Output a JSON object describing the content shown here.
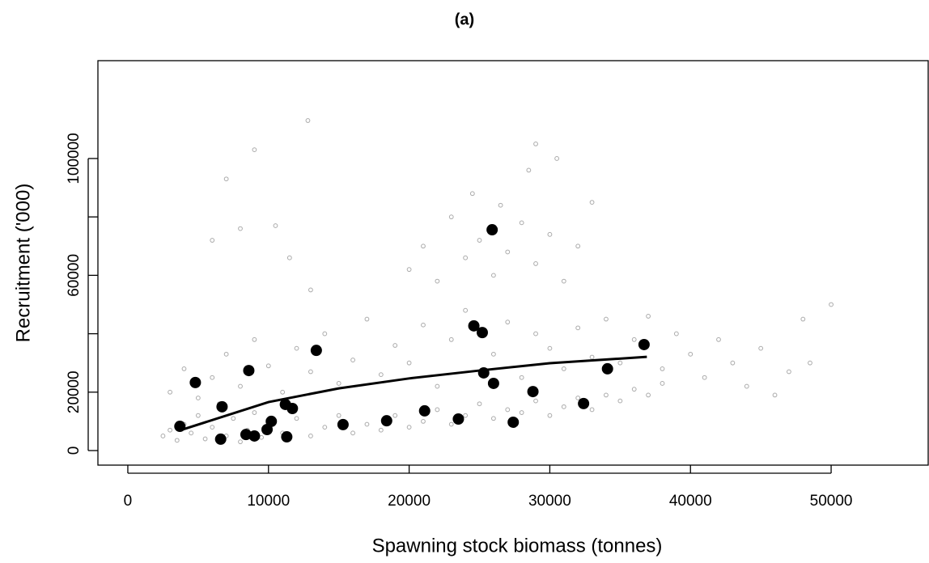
{
  "chart_data": {
    "type": "scatter",
    "title": "(a)",
    "x_label": "Spawning stock biomass (tonnes)",
    "y_label": "Recruitment ('000)",
    "xlim": [
      -2126,
      56900
    ],
    "ylim": [
      -4986,
      133500
    ],
    "xticks": [
      0,
      10000,
      20000,
      30000,
      40000,
      50000
    ],
    "yticks": [
      0,
      20000,
      40000,
      60000,
      80000,
      100000
    ],
    "ytick_labels_shown": [
      0,
      20000,
      60000,
      100000
    ],
    "series": [
      {
        "mode": "open-markers",
        "color": "#aaaaaa",
        "x": [
          2500,
          3000,
          3500,
          4000,
          4500,
          5000,
          5500,
          6000,
          6500,
          7000,
          7500,
          8000,
          8500,
          9000,
          9500,
          10000,
          11000,
          12000,
          13000,
          14000,
          15000,
          16000,
          17000,
          18000,
          19000,
          20000,
          21000,
          22000,
          23000,
          24000,
          25000,
          26000,
          27000,
          28000,
          29000,
          30000,
          31000,
          32000,
          33000,
          34000,
          35000,
          36000,
          37000,
          38000,
          3000,
          4000,
          5000,
          6000,
          7000,
          8000,
          9000,
          10000,
          11000,
          12000,
          13000,
          14000,
          15000,
          16000,
          17000,
          18000,
          19000,
          20000,
          21000,
          22000,
          23000,
          24000,
          26000,
          27000,
          28000,
          29000,
          30000,
          31000,
          32000,
          33000,
          34000,
          35000,
          36000,
          37000,
          38000,
          39000,
          40000,
          41000,
          42000,
          43000,
          44000,
          45000,
          46000,
          47000,
          48000,
          50000,
          48500,
          20000,
          21000,
          22000,
          23000,
          24000,
          24500,
          25000,
          26000,
          26500,
          27000,
          28000,
          28500,
          29000,
          30000,
          30500,
          31000,
          32000,
          33000,
          29000,
          7000,
          9000,
          12800,
          8000,
          10500,
          6000,
          11500,
          13000
        ],
        "values": [
          5000,
          7000,
          3500,
          9000,
          6000,
          12000,
          4000,
          8000,
          16000,
          5000,
          11000,
          3000,
          7000,
          13000,
          4500,
          9000,
          6000,
          11000,
          5000,
          8000,
          12000,
          6000,
          9000,
          7000,
          12000,
          8000,
          10000,
          14000,
          9000,
          12000,
          16000,
          11000,
          14000,
          13000,
          17000,
          12000,
          15000,
          18000,
          14000,
          19000,
          17000,
          21000,
          19000,
          23000,
          20000,
          28000,
          18000,
          25000,
          33000,
          22000,
          38000,
          29000,
          20000,
          35000,
          27000,
          40000,
          23000,
          31000,
          45000,
          26000,
          36000,
          30000,
          43000,
          22000,
          38000,
          48000,
          33000,
          44000,
          25000,
          40000,
          35000,
          28000,
          42000,
          32000,
          45000,
          30000,
          38000,
          46000,
          28000,
          40000,
          33000,
          25000,
          38000,
          30000,
          22000,
          35000,
          19000,
          27000,
          45000,
          50000,
          30000,
          62000,
          70000,
          58000,
          80000,
          66000,
          88000,
          72000,
          60000,
          84000,
          68000,
          78000,
          96000,
          64000,
          74000,
          100000,
          58000,
          70000,
          85000,
          105000,
          93000,
          103000,
          113000,
          76000,
          77000,
          72000,
          66000,
          55000
        ]
      },
      {
        "mode": "line",
        "color": "#000000",
        "x": [
          3700,
          10000,
          15000,
          20000,
          25000,
          30000,
          36900
        ],
        "values": [
          6900,
          16600,
          21300,
          24700,
          27400,
          29900,
          32100
        ]
      },
      {
        "mode": "filled-markers",
        "color": "#000000",
        "x": [
          3700,
          4800,
          6600,
          6700,
          8600,
          8400,
          9000,
          9900,
          10200,
          11200,
          11700,
          11300,
          13400,
          15300,
          18400,
          21100,
          23500,
          24600,
          25200,
          25300,
          25900,
          26000,
          27400,
          28800,
          32400,
          34100,
          36700
        ],
        "values": [
          8300,
          23300,
          3900,
          15000,
          27400,
          5500,
          5000,
          7200,
          10000,
          15800,
          14400,
          4700,
          34300,
          8900,
          10200,
          13600,
          10800,
          42700,
          40400,
          26600,
          75600,
          23000,
          9700,
          20200,
          16100,
          28000,
          36300
        ]
      }
    ]
  }
}
